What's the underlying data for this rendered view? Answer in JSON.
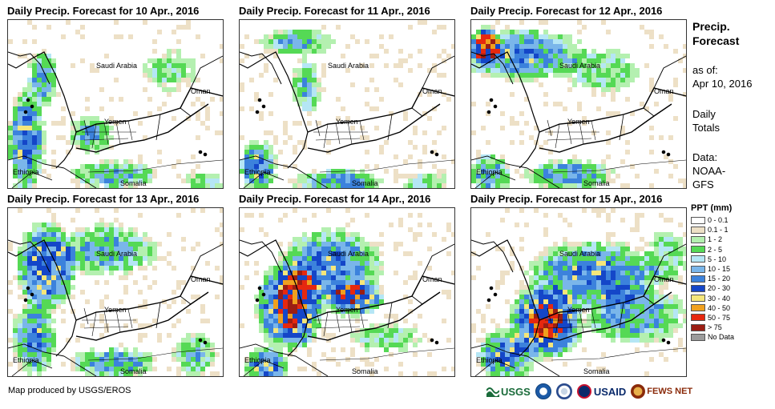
{
  "panels": [
    {
      "title": "Daily Precip. Forecast for 10 Apr., 2016"
    },
    {
      "title": "Daily Precip. Forecast for 11 Apr., 2016"
    },
    {
      "title": "Daily Precip. Forecast for 12 Apr., 2016"
    },
    {
      "title": "Daily Precip. Forecast for 13 Apr., 2016"
    },
    {
      "title": "Daily Precip. Forecast for 14 Apr., 2016"
    },
    {
      "title": "Daily Precip. Forecast for 15 Apr., 2016"
    }
  ],
  "map_labels": {
    "saudi_arabia": "Saudi Arabia",
    "oman": "Oman",
    "yemen": "Yemen",
    "ethiopia": "Ethiopia",
    "somalia": "Somalia"
  },
  "sidebar": {
    "title_line1": "Precip.",
    "title_line2": "Forecast",
    "asof_label": "as of:",
    "asof_date": "Apr 10, 2016",
    "daily_line1": "Daily",
    "daily_line2": "Totals",
    "data_line1": "Data:",
    "data_line2": "NOAA-",
    "data_line3": "GFS"
  },
  "legend": {
    "title": "PPT (mm)",
    "items": [
      {
        "label": "0 - 0.1",
        "color": "#ffffff"
      },
      {
        "label": "0.1 - 1",
        "color": "#ede0c6"
      },
      {
        "label": "1 - 2",
        "color": "#b4f0b0"
      },
      {
        "label": "2 - 5",
        "color": "#55d955"
      },
      {
        "label": "5 - 10",
        "color": "#b5e6f5"
      },
      {
        "label": "10 - 15",
        "color": "#7ab6ea"
      },
      {
        "label": "15 - 20",
        "color": "#3c82dc"
      },
      {
        "label": "20 - 30",
        "color": "#1446c8"
      },
      {
        "label": "30 - 40",
        "color": "#f5e67a"
      },
      {
        "label": "40 - 50",
        "color": "#f0a01e"
      },
      {
        "label": "50 - 75",
        "color": "#e6280f"
      },
      {
        "label": "> 75",
        "color": "#9b1e14"
      },
      {
        "label": "No Data",
        "color": "#9b9b9b"
      }
    ]
  },
  "credit": "Map produced by USGS/EROS",
  "logos": {
    "usgs": "USGS",
    "usaid": "USAID",
    "fews": "FEWS NET"
  }
}
